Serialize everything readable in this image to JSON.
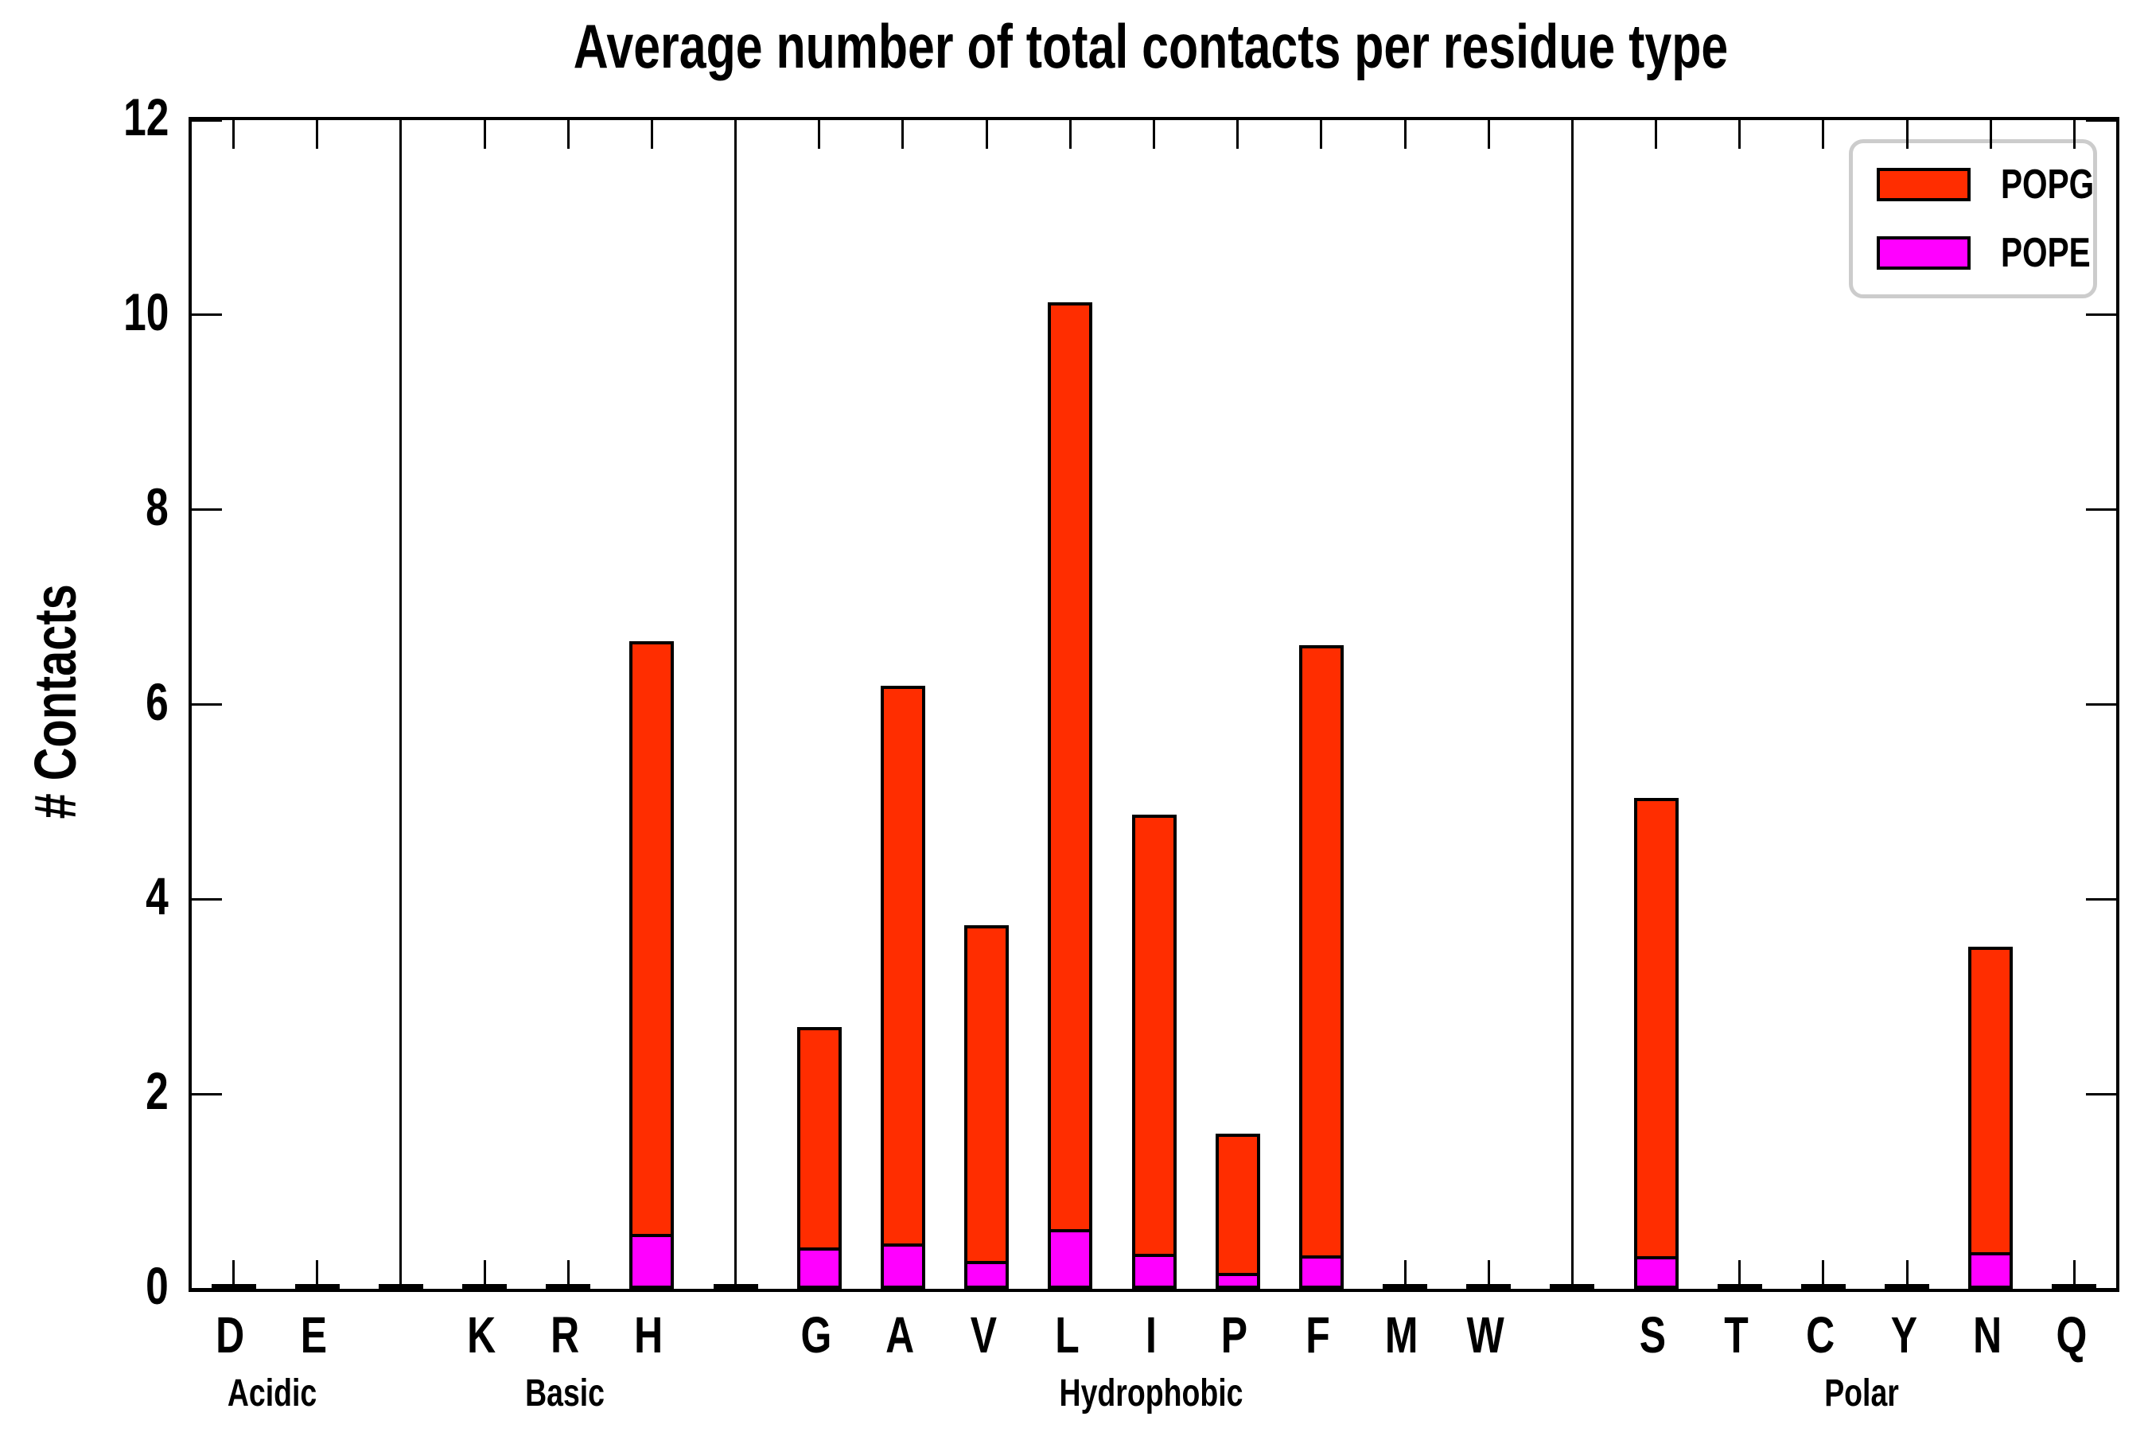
{
  "title": "Average number of total contacts per residue type",
  "ylabel": "# Contacts",
  "legend": [
    {
      "label": "POPG",
      "color": "#ff2d00"
    },
    {
      "label": "POPE",
      "color": "#ff00ff"
    }
  ],
  "colors": {
    "popg": "#ff2d00",
    "pope": "#ff00ff",
    "axis": "#000000",
    "legend_border": "#cccccc",
    "background": "#ffffff"
  },
  "chart_data": {
    "type": "bar",
    "stacked": true,
    "title": "Average number of total contacts per residue type",
    "xlabel": "",
    "ylabel": "# Contacts",
    "ylim": [
      0,
      12
    ],
    "yticks": [
      0,
      2,
      4,
      6,
      8,
      10,
      12
    ],
    "grid": false,
    "legend_position": "upper right",
    "categories": [
      "D",
      "E",
      "K",
      "R",
      "H",
      "G",
      "A",
      "V",
      "L",
      "I",
      "P",
      "F",
      "M",
      "W",
      "S",
      "T",
      "C",
      "Y",
      "N",
      "Q"
    ],
    "groups": [
      {
        "label": "Acidic",
        "residues": [
          "D",
          "E"
        ]
      },
      {
        "label": "Basic",
        "residues": [
          "K",
          "R",
          "H"
        ]
      },
      {
        "label": "Hydrophobic",
        "residues": [
          "G",
          "A",
          "V",
          "L",
          "I",
          "P",
          "F",
          "M",
          "W"
        ]
      },
      {
        "label": "Polar",
        "residues": [
          "S",
          "T",
          "C",
          "Y",
          "N",
          "Q"
        ]
      }
    ],
    "series": [
      {
        "name": "POPE",
        "color": "#ff00ff",
        "values": [
          0.0,
          0.0,
          0.0,
          0.0,
          0.53,
          0.39,
          0.43,
          0.25,
          0.58,
          0.33,
          0.13,
          0.31,
          0.0,
          0.0,
          0.3,
          0.0,
          0.0,
          0.0,
          0.34,
          0.0
        ]
      },
      {
        "name": "POPG",
        "color": "#ff2d00",
        "values": [
          0.04,
          0.04,
          0.04,
          0.04,
          6.12,
          2.3,
          5.76,
          3.48,
          9.55,
          4.54,
          1.46,
          6.3,
          0.04,
          0.04,
          4.74,
          0.03,
          0.03,
          0.04,
          3.17,
          0.03
        ]
      }
    ],
    "totals": [
      0.04,
      0.04,
      0.04,
      0.04,
      6.65,
      2.69,
      6.19,
      3.73,
      10.13,
      4.87,
      1.59,
      6.61,
      0.04,
      0.04,
      5.04,
      0.03,
      0.03,
      0.04,
      3.51,
      0.03
    ],
    "group_divider_bump_value": 0.04
  }
}
